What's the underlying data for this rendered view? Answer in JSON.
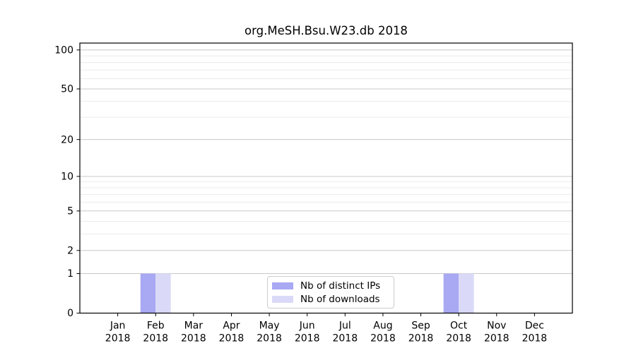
{
  "chart_data": {
    "type": "bar",
    "title": "org.MeSH.Bsu.W23.db 2018",
    "categories": [
      "Jan 2018",
      "Feb 2018",
      "Mar 2018",
      "Apr 2018",
      "May 2018",
      "Jun 2018",
      "Jul 2018",
      "Aug 2018",
      "Sep 2018",
      "Oct 2018",
      "Nov 2018",
      "Dec 2018"
    ],
    "x_tick_months": [
      "Jan",
      "Feb",
      "Mar",
      "Apr",
      "May",
      "Jun",
      "Jul",
      "Aug",
      "Sep",
      "Oct",
      "Nov",
      "Dec"
    ],
    "x_tick_year": "2018",
    "series": [
      {
        "name": "Nb of distinct IPs",
        "color": "#a8a8f3",
        "values": [
          0,
          1,
          0,
          0,
          0,
          0,
          0,
          0,
          0,
          1,
          0,
          0
        ]
      },
      {
        "name": "Nb of downloads",
        "color": "#dadaf8",
        "values": [
          0,
          1,
          0,
          0,
          0,
          0,
          0,
          0,
          0,
          1,
          0,
          0
        ]
      }
    ],
    "yscale": "log1p",
    "ylim": [
      0,
      113
    ],
    "yticks": [
      0,
      1,
      2,
      5,
      10,
      20,
      50,
      100
    ],
    "yticks_minor": [
      3,
      4,
      6,
      7,
      8,
      9,
      30,
      40,
      60,
      70,
      80,
      90
    ],
    "xlabel": "",
    "ylabel": "",
    "grid": "horizontal",
    "legend_position": "lower center"
  },
  "colors": {
    "major_grid": "#c9c9c9",
    "minor_grid": "#ececec",
    "spine": "#000000",
    "tick": "#000000",
    "text": "#000000",
    "background": "#ffffff",
    "legend_border": "#cccccc"
  }
}
